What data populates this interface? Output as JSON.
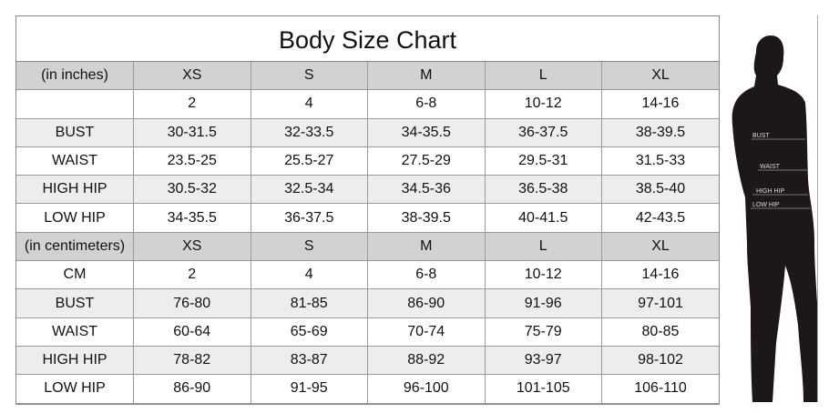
{
  "title": "Body Size Chart",
  "inches": {
    "header": [
      "(in inches)",
      "XS",
      "S",
      "M",
      "L",
      "XL"
    ],
    "rows": [
      [
        "",
        "2",
        "4",
        "6-8",
        "10-12",
        "14-16"
      ],
      [
        "BUST",
        "30-31.5",
        "32-33.5",
        "34-35.5",
        "36-37.5",
        "38-39.5"
      ],
      [
        "WAIST",
        "23.5-25",
        "25.5-27",
        "27.5-29",
        "29.5-31",
        "31.5-33"
      ],
      [
        "HIGH HIP",
        "30.5-32",
        "32.5-34",
        "34.5-36",
        "36.5-38",
        "38.5-40"
      ],
      [
        "LOW HIP",
        "34-35.5",
        "36-37.5",
        "38-39.5",
        "40-41.5",
        "42-43.5"
      ]
    ]
  },
  "centimeters": {
    "header": [
      "(in centimeters)",
      "XS",
      "S",
      "M",
      "L",
      "XL"
    ],
    "rows": [
      [
        "CM",
        "2",
        "4",
        "6-8",
        "10-12",
        "14-16"
      ],
      [
        "BUST",
        "76-80",
        "81-85",
        "86-90",
        "91-96",
        "97-101"
      ],
      [
        "WAIST",
        "60-64",
        "65-69",
        "70-74",
        "75-79",
        "80-85"
      ],
      [
        "HIGH HIP",
        "78-82",
        "83-87",
        "88-92",
        "93-97",
        "98-102"
      ],
      [
        "LOW HIP",
        "86-90",
        "91-95",
        "96-100",
        "101-105",
        "106-110"
      ]
    ]
  },
  "figure": {
    "labels": [
      "BUST",
      "WAIST",
      "HIGH HIP",
      "LOW HIP"
    ]
  },
  "colors": {
    "header_bg": "#d2d2d2",
    "alt_row_bg": "#ededed",
    "silhouette": "#1e1718"
  }
}
